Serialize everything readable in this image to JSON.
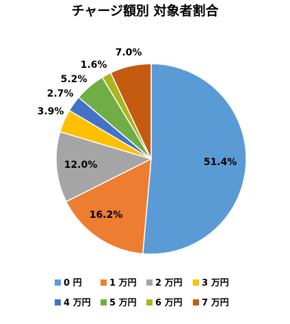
{
  "chart_data": {
    "type": "pie",
    "title": "チャージ額別 対象者割合",
    "categories": [
      "0 円",
      "1 万円",
      "2 万円",
      "3 万円",
      "4 万円",
      "5 万円",
      "6 万円",
      "7 万円"
    ],
    "values": [
      51.4,
      16.2,
      12.0,
      3.9,
      2.7,
      5.2,
      1.6,
      7.0
    ],
    "value_labels": [
      "51.4%",
      "16.2%",
      "12.0%",
      "3.9%",
      "2.7%",
      "5.2%",
      "1.6%",
      "7.0%"
    ],
    "colors": [
      "#5B9BD5",
      "#ED7D31",
      "#A5A5A5",
      "#FFC000",
      "#4472C4",
      "#70AD47",
      "#A9B61D",
      "#C55A11"
    ],
    "start_angle": "12 o'clock",
    "direction": "clockwise",
    "legend_position": "bottom"
  }
}
